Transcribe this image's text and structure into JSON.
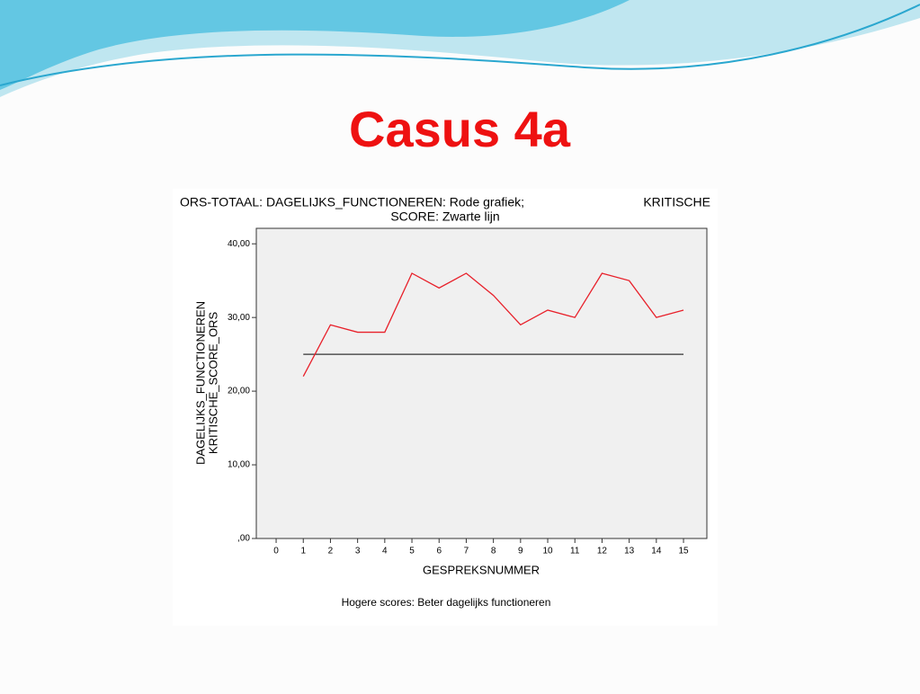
{
  "slide_title": "Casus 4a",
  "chart_data": {
    "type": "line",
    "title_lines": [
      "ORS-TOTAAL: DAGELIJKS_FUNCTIONEREN: Rode grafiek;",
      "KRITISCHE",
      "SCORE: Zwarte lijn"
    ],
    "y_label_lines": [
      "DAGELIJKS_FUNCTIONEREN",
      "KRITISCHE_SCORE_ORS"
    ],
    "x_label": "GESPREKSNUMMER",
    "footnote": "Hogere scores: Beter dagelijks functioneren",
    "x": [
      1,
      2,
      3,
      4,
      5,
      6,
      7,
      8,
      9,
      10,
      11,
      12,
      13,
      14,
      15
    ],
    "series": [
      {
        "color": "#e8202a",
        "values": [
          22,
          29,
          28,
          28,
          36,
          34,
          36,
          33,
          29,
          31,
          30,
          36,
          35,
          30,
          31
        ]
      },
      {
        "color": "#333333",
        "values": [
          25,
          25,
          25,
          25,
          25,
          25,
          25,
          25,
          25,
          25,
          25,
          25,
          25,
          25,
          25
        ]
      }
    ],
    "xlim": [
      -0.73,
      15.86
    ],
    "xticks": [
      0,
      1,
      2,
      3,
      4,
      5,
      6,
      7,
      8,
      9,
      10,
      11,
      12,
      13,
      14,
      15
    ],
    "ylim": [
      0,
      42.1
    ],
    "yticks": [
      {
        "value": 0,
        "label": ",00"
      },
      {
        "value": 10,
        "label": "10,00"
      },
      {
        "value": 20,
        "label": "20,00"
      },
      {
        "value": 30,
        "label": "30,00"
      },
      {
        "value": 40,
        "label": "40,00"
      }
    ]
  }
}
